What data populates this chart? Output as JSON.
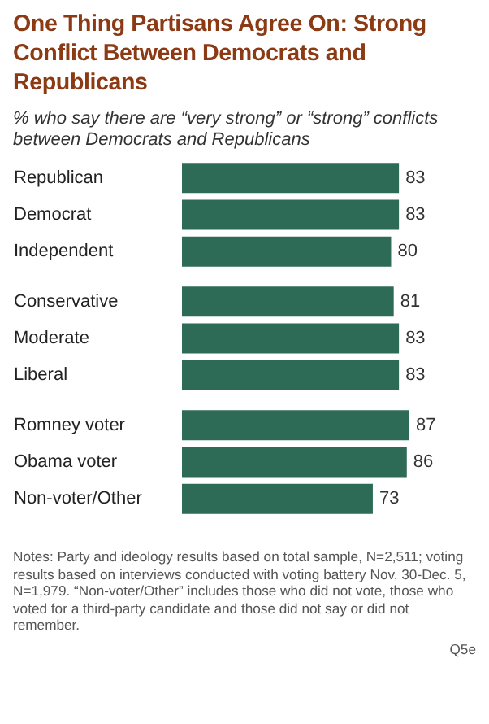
{
  "chart_data": [
    {
      "type": "bar",
      "orientation": "horizontal",
      "title": "One Thing Partisans Agree On: Strong Conflict Between Democrats and Republicans",
      "subtitle": "% who say there are “very strong” or “strong” conflicts between Democrats and Republicans",
      "categories": [
        "Republican",
        "Democrat",
        "Independent"
      ],
      "values": [
        83,
        83,
        80
      ],
      "color": "#2e6b56",
      "data_labels": true
    },
    {
      "type": "bar",
      "orientation": "horizontal",
      "categories": [
        "Conservative",
        "Moderate",
        "Liberal"
      ],
      "values": [
        81,
        83,
        83
      ],
      "color": "#2e6b56",
      "data_labels": true
    },
    {
      "type": "bar",
      "orientation": "horizontal",
      "categories": [
        "Romney voter",
        "Obama voter",
        "Non-voter/Other"
      ],
      "values": [
        87,
        86,
        73
      ],
      "color": "#2e6b56",
      "data_labels": true,
      "annotations": [
        "Notes: Party and ideology results based on total sample, N=2,511; voting results based on interviews conducted with voting battery Nov. 30-Dec. 5, N=1,979. “Non-voter/Other” includes those who did not vote, those who voted for a third-party candidate and those did not say or did not remember.",
        "Q5e"
      ]
    }
  ]
}
